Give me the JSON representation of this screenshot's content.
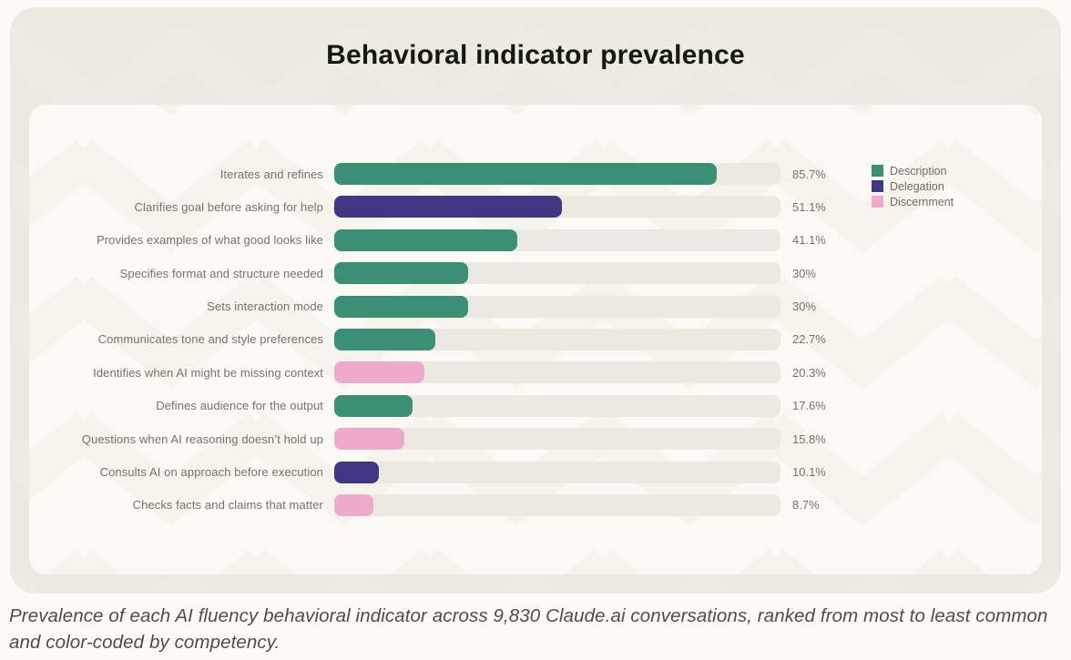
{
  "title": "Behavioral indicator prevalence",
  "caption": "Prevalence of each AI fluency behavioral indicator across 9,830 Claude.ai conversations, ranked from most to least common and color-coded by competency.",
  "colors": {
    "description": "#3a8f74",
    "delegation": "#3f3783",
    "discernment": "#eeaac8",
    "track": "#ebeae0",
    "outer_card": "#ebeae1",
    "inner_card": "#faf9f3",
    "watermark_outer": "#efeee5",
    "watermark_inner": "#f3f2ea",
    "title_text": "#171714",
    "label_text": "#74726b",
    "caption_text": "#4f4d48"
  },
  "legend": [
    {
      "label": "Description",
      "competency": "description"
    },
    {
      "label": "Delegation",
      "competency": "delegation"
    },
    {
      "label": "Discernment",
      "competency": "discernment"
    }
  ],
  "chart_data": {
    "type": "bar",
    "orientation": "horizontal",
    "title": "Behavioral indicator prevalence",
    "xlabel": "",
    "ylabel": "",
    "xlim": [
      0,
      100
    ],
    "unit": "%",
    "grid": false,
    "legend_position": "top-right",
    "categories": [
      "Iterates and refines",
      "Clarifies goal before asking for help",
      "Provides examples of what good looks like",
      "Specifies format and structure needed",
      "Sets interaction mode",
      "Communicates tone and style preferences",
      "Identifies when AI might be missing context",
      "Defines audience for the output",
      "Questions when AI reasoning doesn’t hold up",
      "Consults AI on approach before execution",
      "Checks facts and claims that matter"
    ],
    "values": [
      85.7,
      51.1,
      41.1,
      30,
      30,
      22.7,
      20.3,
      17.6,
      15.8,
      10.1,
      8.7
    ],
    "value_labels": [
      "85.7%",
      "51.1%",
      "41.1%",
      "30%",
      "30%",
      "22.7%",
      "20.3%",
      "17.6%",
      "15.8%",
      "10.1%",
      "8.7%"
    ],
    "competencies": [
      "description",
      "delegation",
      "description",
      "description",
      "description",
      "description",
      "discernment",
      "description",
      "discernment",
      "delegation",
      "discernment"
    ]
  }
}
